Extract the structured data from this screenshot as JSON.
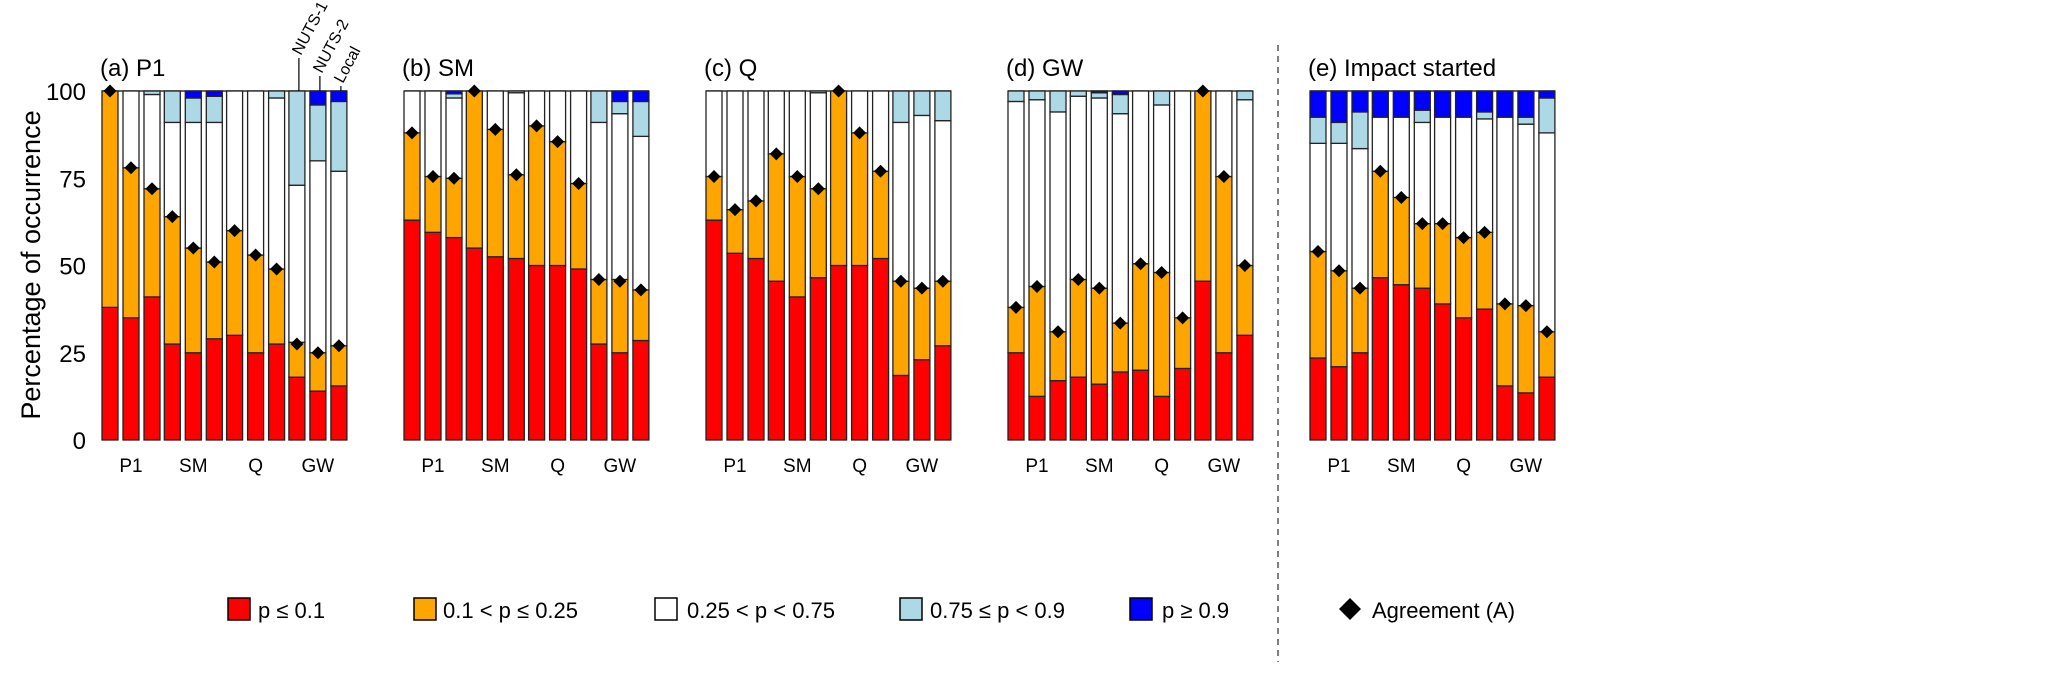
{
  "chart_data": {
    "type": "bar",
    "stacked": true,
    "ylabel": "Percentage of occurrence",
    "ylim": [
      0,
      100
    ],
    "yticks": [
      0,
      25,
      50,
      75,
      100
    ],
    "categories": [
      "P1",
      "SM",
      "Q",
      "GW"
    ],
    "bar_levels": [
      "NUTS-1",
      "NUTS-2",
      "Local"
    ],
    "segment_names": [
      "p ≤ 0.1",
      "0.1 < p ≤ 0.25",
      "0.25 < p < 0.75",
      "0.75 ≤ p < 0.9",
      "p ≥ 0.9"
    ],
    "segment_colors": [
      "#ff0000",
      "#ffa500",
      "#ffffff",
      "#add8e6",
      "#0000ff"
    ],
    "agreement_label": "Agreement (A)",
    "note": "Each bar lists cumulative upper bounds of segments [red, orange, white, lightblue, blue] and the agreement value A",
    "panels": [
      {
        "title": "(a) P1",
        "groups": [
          [
            {
              "cum": [
                38,
                100,
                100,
                100,
                100
              ],
              "A": 100
            },
            {
              "cum": [
                35,
                78,
                100,
                100,
                100
              ],
              "A": 78
            },
            {
              "cum": [
                41,
                72,
                99,
                100,
                100
              ],
              "A": 72
            }
          ],
          [
            {
              "cum": [
                27.5,
                64,
                91,
                100,
                100
              ],
              "A": 64
            },
            {
              "cum": [
                25,
                55,
                91,
                98,
                100
              ],
              "A": 55
            },
            {
              "cum": [
                29,
                51,
                91,
                98.5,
                100
              ],
              "A": 51
            }
          ],
          [
            {
              "cum": [
                30,
                60,
                100,
                100,
                100
              ],
              "A": 60
            },
            {
              "cum": [
                25,
                53,
                100,
                100,
                100
              ],
              "A": 53
            },
            {
              "cum": [
                27.5,
                49,
                98,
                100,
                100
              ],
              "A": 49
            }
          ],
          [
            {
              "cum": [
                18,
                28,
                73,
                100,
                100
              ],
              "A": 27.5
            },
            {
              "cum": [
                14,
                25,
                80,
                96,
                100
              ],
              "A": 25
            },
            {
              "cum": [
                15.5,
                27,
                77,
                97,
                100
              ],
              "A": 27
            }
          ]
        ]
      },
      {
        "title": "(b) SM",
        "groups": [
          [
            {
              "cum": [
                63,
                88,
                100,
                100,
                100
              ],
              "A": 88
            },
            {
              "cum": [
                59.5,
                75.5,
                100,
                100,
                100
              ],
              "A": 75.5
            },
            {
              "cum": [
                58,
                75,
                98,
                99.2,
                100
              ],
              "A": 75
            }
          ],
          [
            {
              "cum": [
                55,
                100,
                100,
                100,
                100
              ],
              "A": 100
            },
            {
              "cum": [
                52.5,
                89,
                100,
                100,
                100
              ],
              "A": 89
            },
            {
              "cum": [
                52,
                76,
                99.5,
                100,
                100
              ],
              "A": 76
            }
          ],
          [
            {
              "cum": [
                50,
                90,
                100,
                100,
                100
              ],
              "A": 90
            },
            {
              "cum": [
                50,
                85.5,
                100,
                100,
                100
              ],
              "A": 85.5
            },
            {
              "cum": [
                49,
                73.5,
                100,
                100,
                100
              ],
              "A": 73.5
            }
          ],
          [
            {
              "cum": [
                27.5,
                46,
                91,
                100,
                100
              ],
              "A": 46
            },
            {
              "cum": [
                25,
                46,
                93.5,
                97,
                100
              ],
              "A": 45.5
            },
            {
              "cum": [
                28.5,
                43,
                87,
                97,
                100
              ],
              "A": 43
            }
          ]
        ]
      },
      {
        "title": "(c) Q",
        "groups": [
          [
            {
              "cum": [
                63,
                75.5,
                100,
                100,
                100
              ],
              "A": 75.5
            },
            {
              "cum": [
                53.5,
                66,
                100,
                100,
                100
              ],
              "A": 66
            },
            {
              "cum": [
                52,
                68.5,
                100,
                100,
                100
              ],
              "A": 68.5
            }
          ],
          [
            {
              "cum": [
                45.5,
                82,
                100,
                100,
                100
              ],
              "A": 82
            },
            {
              "cum": [
                41,
                75.5,
                100,
                100,
                100
              ],
              "A": 75.5
            },
            {
              "cum": [
                46.5,
                72,
                99.5,
                100,
                100
              ],
              "A": 72
            }
          ],
          [
            {
              "cum": [
                50,
                100,
                100,
                100,
                100
              ],
              "A": 100
            },
            {
              "cum": [
                50,
                88,
                100,
                100,
                100
              ],
              "A": 88
            },
            {
              "cum": [
                52,
                77,
                100,
                100,
                100
              ],
              "A": 77
            }
          ],
          [
            {
              "cum": [
                18.5,
                45.5,
                91,
                100,
                100
              ],
              "A": 45.5
            },
            {
              "cum": [
                23,
                43.5,
                93,
                100,
                100
              ],
              "A": 43.5
            },
            {
              "cum": [
                27,
                45.5,
                91.5,
                100,
                100
              ],
              "A": 45.5
            }
          ]
        ]
      },
      {
        "title": "(d) GW",
        "groups": [
          [
            {
              "cum": [
                25,
                38,
                97,
                100,
                100
              ],
              "A": 38
            },
            {
              "cum": [
                12.5,
                44,
                97.5,
                100,
                100
              ],
              "A": 44
            },
            {
              "cum": [
                17,
                31,
                94,
                100,
                100
              ],
              "A": 31
            }
          ],
          [
            {
              "cum": [
                18,
                46,
                98.5,
                100,
                100
              ],
              "A": 46
            },
            {
              "cum": [
                16,
                43.5,
                98,
                99.5,
                100
              ],
              "A": 43.5
            },
            {
              "cum": [
                19.5,
                33.5,
                93.5,
                99,
                100
              ],
              "A": 33.5
            }
          ],
          [
            {
              "cum": [
                20,
                50.5,
                100,
                100,
                100
              ],
              "A": 50.5
            },
            {
              "cum": [
                12.5,
                48,
                96,
                100,
                100
              ],
              "A": 48
            },
            {
              "cum": [
                20.5,
                35,
                100,
                100,
                100
              ],
              "A": 35
            }
          ],
          [
            {
              "cum": [
                45.5,
                100,
                100,
                100,
                100
              ],
              "A": 100
            },
            {
              "cum": [
                25,
                75.5,
                100,
                100,
                100
              ],
              "A": 75.5
            },
            {
              "cum": [
                30,
                50,
                97.5,
                100,
                100
              ],
              "A": 50
            }
          ]
        ]
      },
      {
        "title": "(e) Impact started",
        "groups": [
          [
            {
              "cum": [
                23.5,
                54,
                85,
                92.5,
                100
              ],
              "A": 54
            },
            {
              "cum": [
                21,
                48.5,
                85,
                91,
                100
              ],
              "A": 48.5
            },
            {
              "cum": [
                25,
                43.5,
                83.5,
                94,
                100
              ],
              "A": 43.5
            }
          ],
          [
            {
              "cum": [
                46.5,
                77,
                92.5,
                92.5,
                100
              ],
              "A": 77
            },
            {
              "cum": [
                44.5,
                69.5,
                92.5,
                92.5,
                100
              ],
              "A": 69.5
            },
            {
              "cum": [
                43.5,
                62,
                91,
                94.5,
                100
              ],
              "A": 62
            }
          ],
          [
            {
              "cum": [
                39,
                62,
                92.5,
                92.5,
                100
              ],
              "A": 62
            },
            {
              "cum": [
                35,
                58,
                92.5,
                92.5,
                100
              ],
              "A": 58
            },
            {
              "cum": [
                37.5,
                59.5,
                92,
                94,
                100
              ],
              "A": 59.5
            }
          ],
          [
            {
              "cum": [
                15.5,
                39,
                92.5,
                92.5,
                100
              ],
              "A": 39
            },
            {
              "cum": [
                13.5,
                38.5,
                90.5,
                92.5,
                100
              ],
              "A": 38.5
            },
            {
              "cum": [
                18,
                31,
                88,
                98,
                100
              ],
              "A": 31
            }
          ]
        ]
      }
    ]
  }
}
